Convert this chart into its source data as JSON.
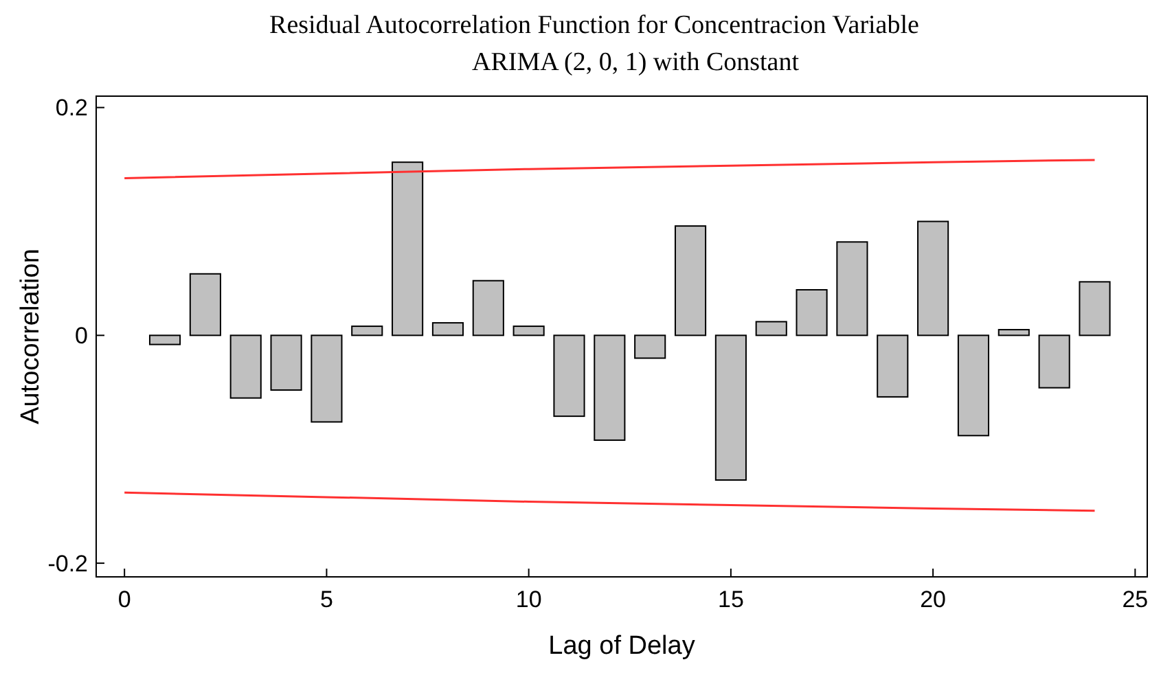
{
  "chart_data": {
    "type": "bar",
    "title": "Residual Autocorrelation Function for Concentracion Variable",
    "subtitle": "ARIMA (2, 0, 1) with Constant",
    "xlabel": "Lag of Delay",
    "ylabel": "Autocorrelation",
    "x": [
      1,
      2,
      3,
      4,
      5,
      6,
      7,
      8,
      9,
      10,
      11,
      12,
      13,
      14,
      15,
      16,
      17,
      18,
      19,
      20,
      21,
      22,
      23,
      24
    ],
    "series": [
      {
        "color": "#c0c0c0",
        "values": [
          -0.008,
          0.054,
          -0.055,
          -0.048,
          -0.076,
          0.008,
          0.152,
          0.011,
          0.048,
          0.008,
          -0.071,
          -0.092,
          -0.02,
          0.096,
          -0.127,
          0.012,
          0.04,
          0.082,
          -0.054,
          0.1,
          -0.088,
          0.005,
          -0.046,
          0.047
        ]
      },
      {
        "type": "line",
        "color": "#ff3030",
        "x": [
          0,
          5,
          10,
          15,
          20,
          24
        ],
        "values": [
          0.138,
          0.142,
          0.146,
          0.149,
          0.152,
          0.154
        ]
      },
      {
        "type": "line",
        "color": "#ff3030",
        "x": [
          0,
          5,
          10,
          15,
          20,
          24
        ],
        "values": [
          -0.138,
          -0.142,
          -0.146,
          -0.149,
          -0.152,
          -0.154
        ]
      }
    ],
    "xlim": [
      -0.7,
      25.3
    ],
    "xticks": [
      0,
      5,
      10,
      15,
      20,
      25
    ],
    "ylim": [
      -0.212,
      0.21
    ],
    "yticks": [
      {
        "value": -0.2,
        "label": "-0.2"
      },
      0,
      0.2
    ],
    "grid": false
  }
}
